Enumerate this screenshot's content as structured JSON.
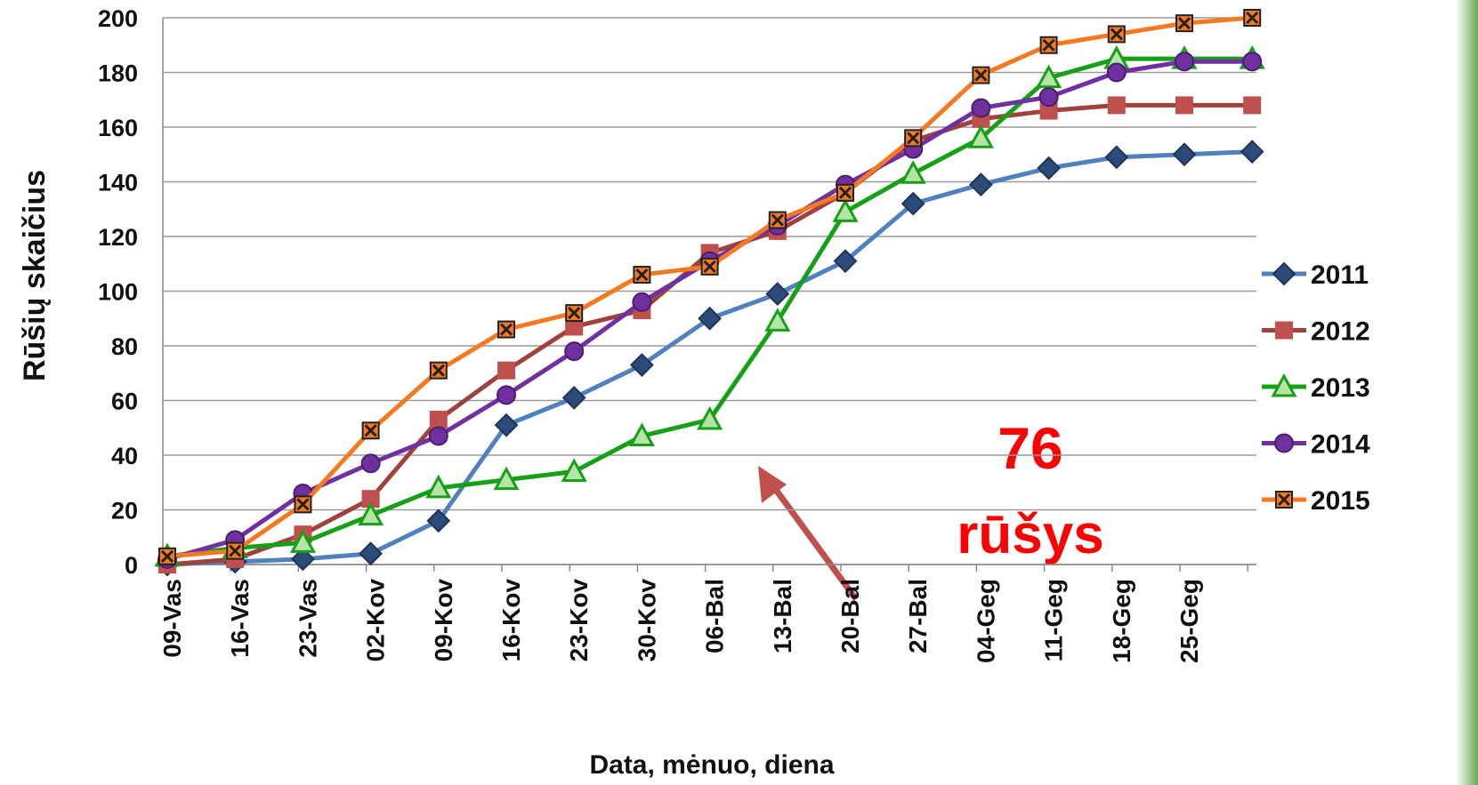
{
  "chart_data": {
    "type": "line",
    "y_label": "Rūšių skaičius",
    "x_label": "Data, mėnuo, diena",
    "categories": [
      "09-Vas",
      "16-Vas",
      "23-Vas",
      "02-Kov",
      "09-Kov",
      "16-Kov",
      "23-Kov",
      "30-Kov",
      "06-Bal",
      "13-Bal",
      "20-Bal",
      "27-Bal",
      "04-Geg",
      "11-Geg",
      "18-Geg",
      "25-Geg",
      null
    ],
    "series": [
      {
        "name": "2011",
        "color": "#4f81bd",
        "marker": "diamond",
        "values": [
          0,
          1,
          2,
          4,
          16,
          51,
          61,
          73,
          90,
          99,
          111,
          132,
          139,
          145,
          149,
          150,
          151
        ]
      },
      {
        "name": "2012",
        "color": "#a0413c",
        "marker": "square",
        "values": [
          0,
          2,
          11,
          24,
          53,
          71,
          87,
          93,
          114,
          122,
          136,
          155,
          163,
          166,
          168,
          168,
          168
        ]
      },
      {
        "name": "2013",
        "color": "#16a016",
        "marker": "triangle",
        "values": [
          3,
          6,
          8,
          18,
          28,
          31,
          34,
          47,
          53,
          89,
          129,
          143,
          156,
          178,
          185,
          185,
          185
        ]
      },
      {
        "name": "2014",
        "color": "#7030a0",
        "marker": "circle",
        "values": [
          2,
          9,
          26,
          37,
          47,
          62,
          78,
          96,
          111,
          124,
          139,
          152,
          167,
          171,
          180,
          184,
          184
        ]
      },
      {
        "name": "2015",
        "color": "#f47920",
        "marker": "xsquare",
        "values": [
          3,
          5,
          22,
          49,
          71,
          86,
          92,
          106,
          109,
          126,
          136,
          156,
          179,
          190,
          194,
          198,
          200
        ]
      }
    ],
    "ylim": [
      0,
      200
    ],
    "yticks": [
      0,
      20,
      40,
      60,
      80,
      100,
      120,
      140,
      160,
      180,
      200
    ],
    "grid": true,
    "legend": "right",
    "annotations": [
      "76",
      "rūšys"
    ]
  }
}
